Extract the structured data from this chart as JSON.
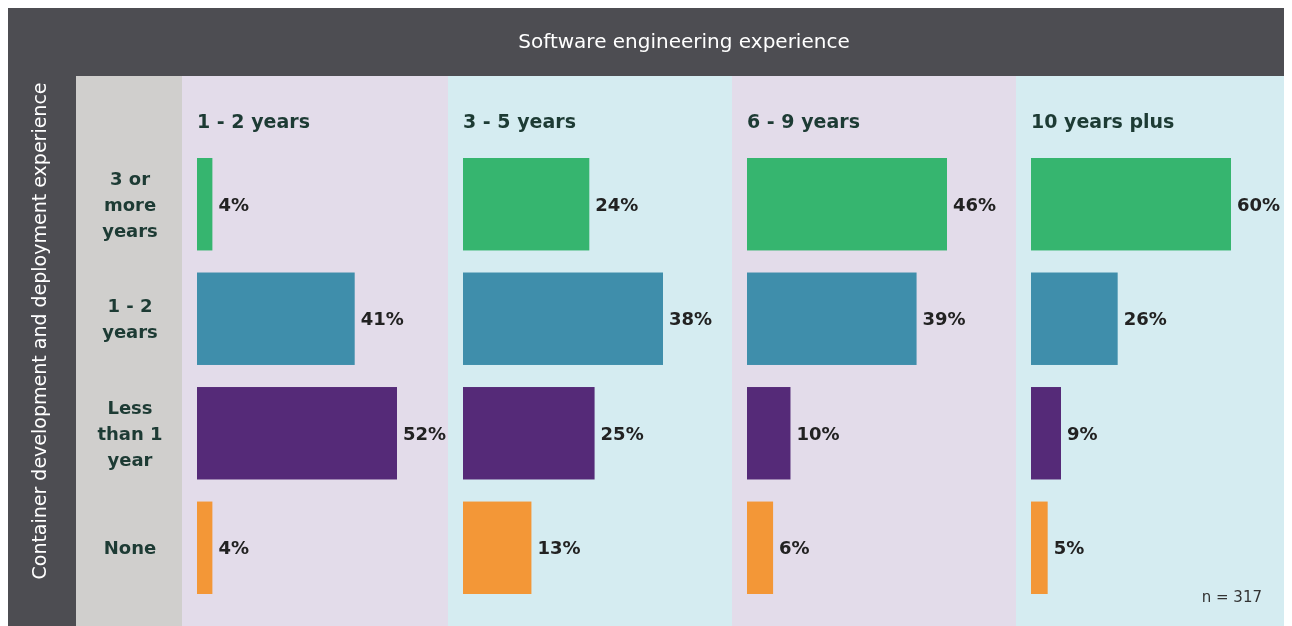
{
  "chart_data": [
    {
      "type": "bar",
      "orientation": "horizontal",
      "title": "1 - 2 years",
      "ylabel": "Container development and deployment experience",
      "annotations": [
        "Software engineering experience"
      ],
      "categories": [
        "3 or more years",
        "1 - 2 years",
        "Less than 1 year",
        "None"
      ],
      "values": [
        4,
        41,
        52,
        4
      ],
      "value_labels": [
        "4%",
        "41%",
        "52%",
        "4%"
      ],
      "colors": [
        "#36b56f",
        "#3f8eab",
        "#552a78",
        "#f39737"
      ],
      "tick_labels": "y"
    },
    {
      "type": "bar",
      "orientation": "horizontal",
      "title": "3 - 5 years",
      "categories": [
        null,
        null,
        null,
        null
      ],
      "values": [
        24,
        38,
        25,
        13
      ],
      "value_labels": [
        "24%",
        "38%",
        "25%",
        "13%"
      ],
      "colors": [
        "#36b56f",
        "#3f8eab",
        "#552a78",
        "#f39737"
      ],
      "tick_labels": false
    },
    {
      "type": "bar",
      "orientation": "horizontal",
      "title": "6 - 9 years",
      "categories": [
        null,
        null,
        null,
        null
      ],
      "values": [
        46,
        39,
        10,
        6
      ],
      "value_labels": [
        "46%",
        "39%",
        "10%",
        "6%"
      ],
      "colors": [
        "#36b56f",
        "#3f8eab",
        "#552a78",
        "#f39737"
      ],
      "tick_labels": false
    },
    {
      "type": "bar",
      "orientation": "horizontal",
      "title": "10 years plus",
      "annotations": [
        "n = 317"
      ],
      "categories": [
        null,
        null,
        null,
        null
      ],
      "values": [
        60,
        26,
        9,
        5
      ],
      "value_labels": [
        "60%",
        "26%",
        "9%",
        "5%"
      ],
      "colors": [
        "#36b56f",
        "#3f8eab",
        "#552a78",
        "#f39737"
      ],
      "tick_labels": false
    }
  ]
}
